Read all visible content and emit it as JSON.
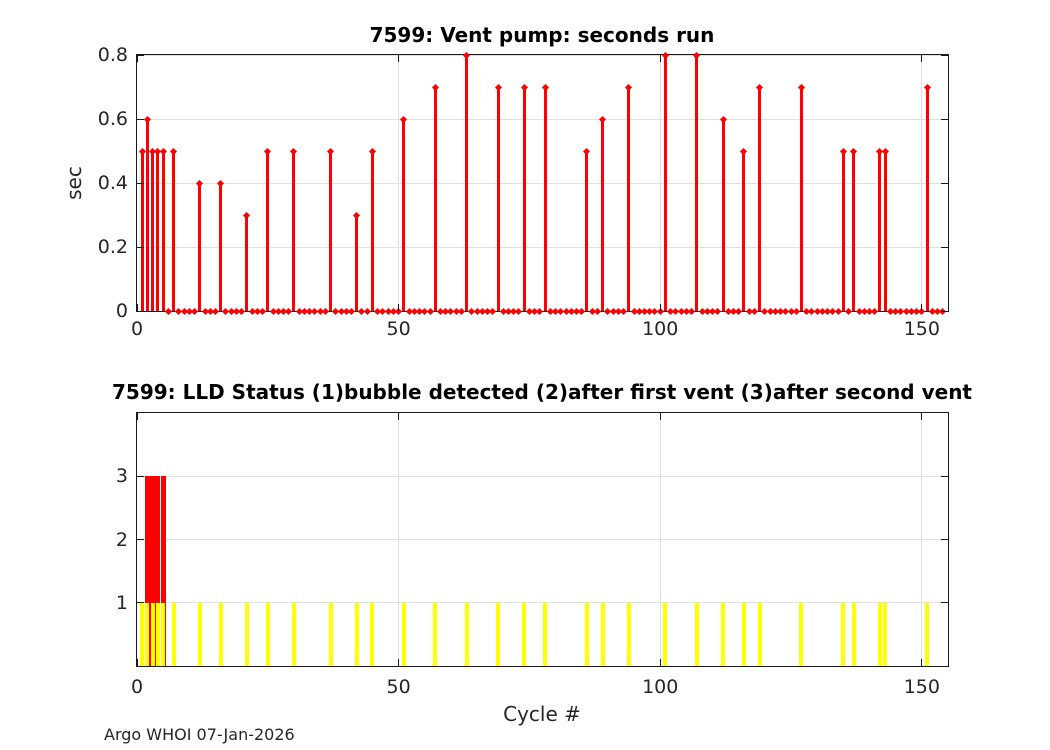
{
  "figure": {
    "footer": "Argo WHOI 07-Jan-2026",
    "background": "#ffffff"
  },
  "chart_data": [
    {
      "type": "stem",
      "title": "7599: Vent pump: seconds run",
      "ylabel": "sec",
      "xlabel": "",
      "xlim": [
        0,
        155
      ],
      "ylim": [
        0,
        0.8
      ],
      "xticks": [
        0,
        50,
        100,
        150
      ],
      "yticks": [
        0,
        0.2,
        0.4,
        0.6,
        0.8
      ],
      "grid": true,
      "stem_color": "#ff0000",
      "marker": "filled-diamond",
      "stems": {
        "x": [
          1,
          2,
          3,
          4,
          5,
          7,
          12,
          16,
          21,
          25,
          30,
          37,
          42,
          45,
          51,
          57,
          63,
          69,
          74,
          78,
          86,
          89,
          94,
          101,
          107,
          112,
          116,
          119,
          127,
          135,
          137,
          142,
          143,
          151
        ],
        "y": [
          0.5,
          0.6,
          0.5,
          0.5,
          0.5,
          0.5,
          0.4,
          0.4,
          0.3,
          0.5,
          0.5,
          0.5,
          0.3,
          0.5,
          0.6,
          0.7,
          0.8,
          0.7,
          0.7,
          0.7,
          0.5,
          0.6,
          0.7,
          0.8,
          0.8,
          0.6,
          0.5,
          0.7,
          0.7,
          0.5,
          0.5,
          0.5,
          0.5,
          0.7
        ]
      },
      "baseline_markers": {
        "from": 1,
        "to": 154,
        "value": 0
      }
    },
    {
      "type": "bar",
      "title": "7599: LLD Status   (1)bubble detected   (2)after first vent  (3)after second vent",
      "ylabel": "",
      "xlabel": "Cycle #",
      "xlim": [
        0,
        155
      ],
      "ylim": [
        0,
        4
      ],
      "xticks": [
        0,
        50,
        100,
        150
      ],
      "yticks": [
        1,
        2,
        3
      ],
      "grid": true,
      "series": [
        {
          "name": "lld-status-3-after-second-vent",
          "color": "#ff0000",
          "value": 3,
          "x": [
            2,
            3,
            4,
            5
          ]
        },
        {
          "name": "lld-status-1-bubble-detected",
          "color": "#ffff00",
          "value": 1,
          "x": [
            1,
            2,
            3,
            4,
            5,
            7,
            12,
            16,
            21,
            25,
            30,
            37,
            42,
            45,
            51,
            57,
            63,
            69,
            74,
            78,
            86,
            89,
            94,
            101,
            107,
            112,
            116,
            119,
            127,
            135,
            137,
            142,
            143,
            151
          ]
        }
      ]
    }
  ]
}
